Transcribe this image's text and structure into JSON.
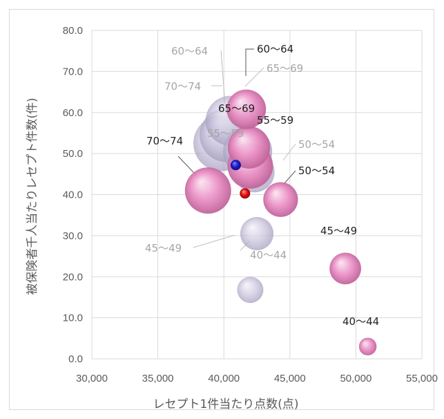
{
  "chart_data": {
    "type": "bubble",
    "xlabel": "レセプト1件当たり点数(点)",
    "ylabel": "被保険者千人当たりレセプト件数(件)",
    "xlim": [
      30000,
      55000
    ],
    "ylim": [
      0,
      80
    ],
    "x_ticks": [
      "30,000",
      "35,000",
      "40,000",
      "45,000",
      "50,000",
      "55,000"
    ],
    "y_ticks": [
      "0.0",
      "10.0",
      "20.0",
      "30.0",
      "40.0",
      "50.0",
      "60.0",
      "70.0",
      "80.0"
    ],
    "grid": true,
    "colors": {
      "pink": "#e98fc4",
      "grey": "#c9c2dc",
      "blue": "#1c1ccc",
      "red": "#e01010",
      "grid": "#d9d9d9"
    },
    "series": [
      {
        "color_key": "grey",
        "points": [
          {
            "label": "40〜44",
            "x": 42000,
            "y": 16.8,
            "size": 1.0
          },
          {
            "label": "45〜49",
            "x": 42500,
            "y": 30.5,
            "size": 1.6
          },
          {
            "label": "50〜54",
            "x": 42300,
            "y": 45.5,
            "size": 2.4
          },
          {
            "label": "55〜59",
            "x": 41800,
            "y": 50.5,
            "size": 3.5
          },
          {
            "label": "60〜64",
            "x": 40200,
            "y": 54.5,
            "size": 4.2
          },
          {
            "label": "65〜69",
            "x": 40500,
            "y": 58.0,
            "size": 3.6
          },
          {
            "label": "70〜74",
            "x": 39800,
            "y": 52.5,
            "size": 4.5
          }
        ]
      },
      {
        "color_key": "pink",
        "points": [
          {
            "label": "40〜44",
            "x": 50900,
            "y": 3.0,
            "size": 0.45
          },
          {
            "label": "45〜49",
            "x": 49200,
            "y": 22.0,
            "size": 1.45
          },
          {
            "label": "50〜54",
            "x": 44300,
            "y": 38.8,
            "size": 1.75
          },
          {
            "label": "55〜59",
            "x": 42000,
            "y": 47.0,
            "size": 3.0
          },
          {
            "label": "60〜64",
            "x": 41700,
            "y": 60.8,
            "size": 2.25
          },
          {
            "label": "65〜69",
            "x": 41900,
            "y": 51.5,
            "size": 2.6
          },
          {
            "label": "70〜74",
            "x": 38800,
            "y": 41.0,
            "size": 3.1
          }
        ]
      }
    ],
    "markers": [
      {
        "color_key": "blue",
        "x": 40900,
        "y": 47.2
      },
      {
        "color_key": "red",
        "x": 41600,
        "y": 40.3
      }
    ]
  }
}
